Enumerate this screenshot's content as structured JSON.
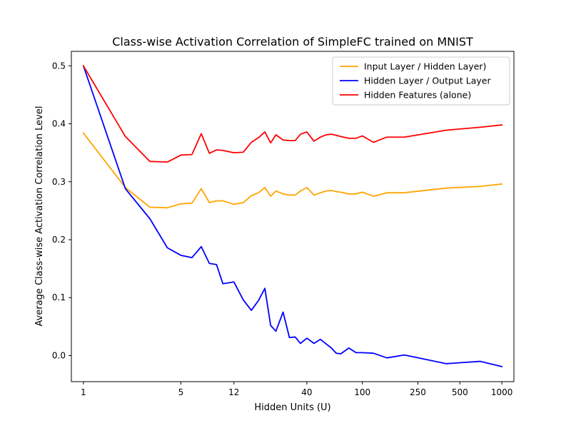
{
  "chart_data": {
    "type": "line",
    "title": "Class-wise Activation Correlation of SimpleFC trained on MNIST",
    "xlabel": "Hidden Units (U)",
    "ylabel": "Average Class-wise Activation Correlation Level",
    "x_scale": "log",
    "xlim": [
      0.82,
      1220
    ],
    "ylim": [
      -0.045,
      0.525
    ],
    "x_ticks": [
      1,
      5,
      12,
      40,
      100,
      250,
      500,
      1000
    ],
    "x_tick_labels": [
      "1",
      "5",
      "12",
      "40",
      "100",
      "250",
      "500",
      "1000"
    ],
    "y_ticks": [
      0.0,
      0.1,
      0.2,
      0.3,
      0.4,
      0.5
    ],
    "y_tick_labels": [
      "0.0",
      "0.1",
      "0.2",
      "0.3",
      "0.4",
      "0.5"
    ],
    "grid": false,
    "legend_position": "upper right",
    "x": [
      1,
      2,
      3,
      4,
      5,
      6,
      7,
      8,
      9,
      10,
      12,
      14,
      16,
      18,
      20,
      22,
      24,
      27,
      30,
      33,
      36,
      40,
      45,
      50,
      55,
      60,
      65,
      70,
      80,
      90,
      100,
      120,
      150,
      200,
      400,
      700,
      1000
    ],
    "series": [
      {
        "name": "Input Layer / Hidden Layer)",
        "color": "#FFA500",
        "values": [
          0.384,
          0.29,
          0.256,
          0.255,
          0.262,
          0.263,
          0.288,
          0.264,
          0.267,
          0.267,
          0.261,
          0.264,
          0.276,
          0.281,
          0.29,
          0.275,
          0.284,
          0.279,
          0.277,
          0.277,
          0.284,
          0.29,
          0.277,
          0.281,
          0.284,
          0.285,
          0.283,
          0.282,
          0.279,
          0.279,
          0.282,
          0.275,
          0.281,
          0.281,
          0.289,
          0.292,
          0.296
        ]
      },
      {
        "name": "Hidden Layer / Output Layer",
        "color": "#0000FF",
        "values": [
          0.5,
          0.288,
          0.236,
          0.186,
          0.173,
          0.169,
          0.188,
          0.159,
          0.157,
          0.124,
          0.127,
          0.096,
          0.078,
          0.095,
          0.116,
          0.052,
          0.042,
          0.075,
          0.031,
          0.032,
          0.021,
          0.03,
          0.021,
          0.028,
          0.02,
          0.013,
          0.004,
          0.003,
          0.013,
          0.005,
          0.005,
          0.004,
          -0.004,
          0.001,
          -0.014,
          -0.01,
          -0.019
        ]
      },
      {
        "name": "Hidden Features (alone)",
        "color": "#FF0000",
        "values": [
          0.5,
          0.378,
          0.335,
          0.334,
          0.346,
          0.347,
          0.383,
          0.349,
          0.355,
          0.354,
          0.35,
          0.351,
          0.368,
          0.376,
          0.386,
          0.367,
          0.381,
          0.372,
          0.371,
          0.371,
          0.382,
          0.386,
          0.37,
          0.377,
          0.381,
          0.382,
          0.38,
          0.378,
          0.375,
          0.375,
          0.379,
          0.368,
          0.377,
          0.377,
          0.389,
          0.394,
          0.398
        ]
      }
    ]
  }
}
